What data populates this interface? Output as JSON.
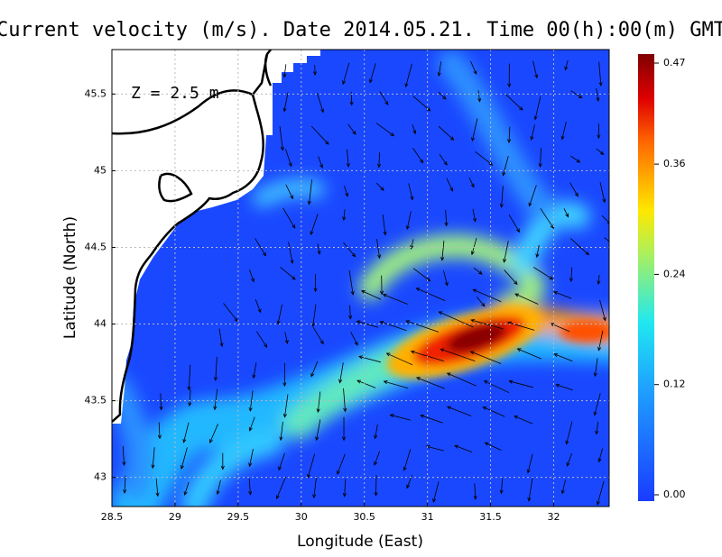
{
  "title": "Current velocity (m/s). Date 2014.05.21. Time 00(h):00(m) GMT",
  "annotation": "Z = 2.5 m",
  "x_axis": {
    "label": "Longitude (East)",
    "lim": [
      28.5,
      32.44
    ],
    "ticks": [
      28.5,
      29,
      29.5,
      30,
      30.5,
      31,
      31.5,
      32
    ]
  },
  "y_axis": {
    "label": "Latitude (North)",
    "lim": [
      42.81,
      45.79
    ],
    "ticks": [
      43,
      43.5,
      44,
      44.5,
      45,
      45.5
    ]
  },
  "colorbar": {
    "lim": [
      0,
      0.47
    ],
    "ticks": [
      {
        "value": 0,
        "label": "0.00"
      },
      0.12,
      0.24,
      0.36,
      0.47
    ]
  }
}
